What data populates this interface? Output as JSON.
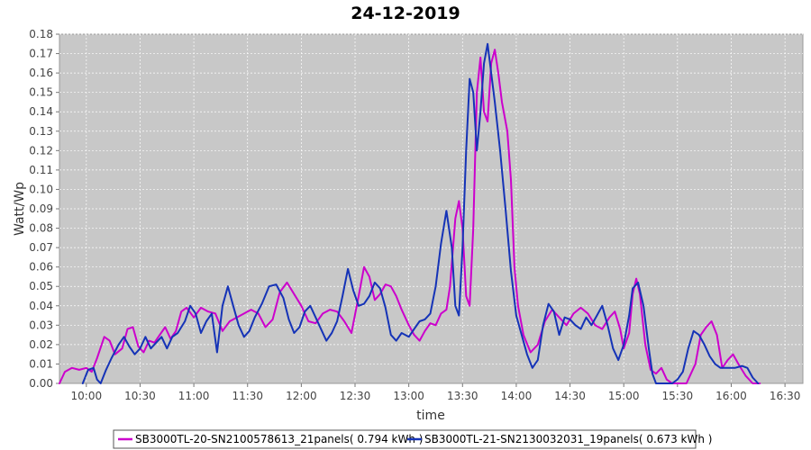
{
  "chart_data": {
    "type": "line",
    "title": "24-12-2019",
    "xlabel": "time",
    "ylabel": "Watt/Wp",
    "x_axis_kind": "time",
    "xlim": [
      "09:45",
      "16:40"
    ],
    "ylim": [
      0,
      0.18
    ],
    "x_ticks": [
      "10:00",
      "10:30",
      "11:00",
      "11:30",
      "12:00",
      "12:30",
      "13:00",
      "13:30",
      "14:00",
      "14:30",
      "15:00",
      "15:30",
      "16:00",
      "16:30"
    ],
    "y_ticks": [
      "0.00",
      "0.01",
      "0.02",
      "0.03",
      "0.04",
      "0.05",
      "0.06",
      "0.07",
      "0.08",
      "0.09",
      "0.10",
      "0.11",
      "0.12",
      "0.13",
      "0.14",
      "0.15",
      "0.16",
      "0.17",
      "0.18"
    ],
    "grid": true,
    "legend_position": "bottom",
    "background_color": "#c8c8c8",
    "series": [
      {
        "name": "SB3000TL-20-SN2100578613_21panels( 0.794 kWh )",
        "color": "#cc00cc",
        "points": [
          [
            "09:45",
            0.0
          ],
          [
            "09:48",
            0.006
          ],
          [
            "09:52",
            0.008
          ],
          [
            "09:56",
            0.007
          ],
          [
            "10:00",
            0.008
          ],
          [
            "10:03",
            0.006
          ],
          [
            "10:06",
            0.013
          ],
          [
            "10:10",
            0.024
          ],
          [
            "10:13",
            0.022
          ],
          [
            "10:16",
            0.015
          ],
          [
            "10:20",
            0.018
          ],
          [
            "10:23",
            0.028
          ],
          [
            "10:26",
            0.029
          ],
          [
            "10:29",
            0.019
          ],
          [
            "10:32",
            0.016
          ],
          [
            "10:35",
            0.022
          ],
          [
            "10:38",
            0.021
          ],
          [
            "10:41",
            0.025
          ],
          [
            "10:44",
            0.029
          ],
          [
            "10:47",
            0.023
          ],
          [
            "10:50",
            0.027
          ],
          [
            "10:53",
            0.037
          ],
          [
            "10:56",
            0.039
          ],
          [
            "11:00",
            0.034
          ],
          [
            "11:04",
            0.039
          ],
          [
            "11:08",
            0.037
          ],
          [
            "11:12",
            0.036
          ],
          [
            "11:16",
            0.027
          ],
          [
            "11:20",
            0.032
          ],
          [
            "11:24",
            0.034
          ],
          [
            "11:28",
            0.036
          ],
          [
            "11:32",
            0.038
          ],
          [
            "11:36",
            0.036
          ],
          [
            "11:40",
            0.029
          ],
          [
            "11:44",
            0.033
          ],
          [
            "11:48",
            0.047
          ],
          [
            "11:52",
            0.052
          ],
          [
            "11:56",
            0.046
          ],
          [
            "12:00",
            0.04
          ],
          [
            "12:04",
            0.032
          ],
          [
            "12:08",
            0.031
          ],
          [
            "12:12",
            0.036
          ],
          [
            "12:16",
            0.038
          ],
          [
            "12:20",
            0.037
          ],
          [
            "12:24",
            0.032
          ],
          [
            "12:28",
            0.026
          ],
          [
            "12:32",
            0.045
          ],
          [
            "12:35",
            0.06
          ],
          [
            "12:38",
            0.055
          ],
          [
            "12:41",
            0.043
          ],
          [
            "12:44",
            0.046
          ],
          [
            "12:47",
            0.051
          ],
          [
            "12:50",
            0.05
          ],
          [
            "12:53",
            0.045
          ],
          [
            "12:56",
            0.038
          ],
          [
            "13:00",
            0.03
          ],
          [
            "13:03",
            0.025
          ],
          [
            "13:06",
            0.022
          ],
          [
            "13:09",
            0.027
          ],
          [
            "13:12",
            0.031
          ],
          [
            "13:15",
            0.03
          ],
          [
            "13:18",
            0.036
          ],
          [
            "13:21",
            0.038
          ],
          [
            "13:23",
            0.05
          ],
          [
            "13:26",
            0.085
          ],
          [
            "13:28",
            0.094
          ],
          [
            "13:30",
            0.08
          ],
          [
            "13:32",
            0.045
          ],
          [
            "13:34",
            0.04
          ],
          [
            "13:36",
            0.08
          ],
          [
            "13:38",
            0.15
          ],
          [
            "13:40",
            0.168
          ],
          [
            "13:42",
            0.14
          ],
          [
            "13:44",
            0.135
          ],
          [
            "13:46",
            0.165
          ],
          [
            "13:48",
            0.172
          ],
          [
            "13:50",
            0.16
          ],
          [
            "13:52",
            0.145
          ],
          [
            "13:55",
            0.13
          ],
          [
            "13:57",
            0.105
          ],
          [
            "13:59",
            0.06
          ],
          [
            "14:01",
            0.04
          ],
          [
            "14:04",
            0.025
          ],
          [
            "14:08",
            0.016
          ],
          [
            "14:12",
            0.02
          ],
          [
            "14:16",
            0.032
          ],
          [
            "14:20",
            0.038
          ],
          [
            "14:24",
            0.034
          ],
          [
            "14:28",
            0.03
          ],
          [
            "14:32",
            0.036
          ],
          [
            "14:36",
            0.039
          ],
          [
            "14:40",
            0.036
          ],
          [
            "14:44",
            0.03
          ],
          [
            "14:48",
            0.028
          ],
          [
            "14:52",
            0.034
          ],
          [
            "14:55",
            0.037
          ],
          [
            "14:58",
            0.028
          ],
          [
            "15:00",
            0.018
          ],
          [
            "15:03",
            0.026
          ],
          [
            "15:05",
            0.046
          ],
          [
            "15:07",
            0.054
          ],
          [
            "15:09",
            0.046
          ],
          [
            "15:12",
            0.02
          ],
          [
            "15:15",
            0.007
          ],
          [
            "15:18",
            0.005
          ],
          [
            "15:21",
            0.008
          ],
          [
            "15:24",
            0.002
          ],
          [
            "15:27",
            0.0
          ],
          [
            "15:35",
            0.0
          ],
          [
            "15:40",
            0.01
          ],
          [
            "15:43",
            0.025
          ],
          [
            "15:46",
            0.029
          ],
          [
            "15:49",
            0.032
          ],
          [
            "15:52",
            0.025
          ],
          [
            "15:55",
            0.008
          ],
          [
            "15:58",
            0.012
          ],
          [
            "16:01",
            0.015
          ],
          [
            "16:04",
            0.01
          ],
          [
            "16:08",
            0.004
          ],
          [
            "16:12",
            0.0
          ],
          [
            "16:16",
            0.0
          ]
        ]
      },
      {
        "name": "SB3000TL-21-SN2130032031_19panels( 0.673 kWh )",
        "color": "#1533b7",
        "points": [
          [
            "09:58",
            0.0
          ],
          [
            "10:01",
            0.007
          ],
          [
            "10:04",
            0.008
          ],
          [
            "10:06",
            0.002
          ],
          [
            "10:08",
            0.0
          ],
          [
            "10:11",
            0.007
          ],
          [
            "10:14",
            0.013
          ],
          [
            "10:18",
            0.02
          ],
          [
            "10:21",
            0.024
          ],
          [
            "10:24",
            0.019
          ],
          [
            "10:27",
            0.015
          ],
          [
            "10:30",
            0.018
          ],
          [
            "10:33",
            0.024
          ],
          [
            "10:36",
            0.018
          ],
          [
            "10:39",
            0.021
          ],
          [
            "10:42",
            0.024
          ],
          [
            "10:45",
            0.018
          ],
          [
            "10:48",
            0.024
          ],
          [
            "10:51",
            0.026
          ],
          [
            "10:55",
            0.032
          ],
          [
            "10:58",
            0.04
          ],
          [
            "11:01",
            0.036
          ],
          [
            "11:04",
            0.026
          ],
          [
            "11:07",
            0.032
          ],
          [
            "11:10",
            0.036
          ],
          [
            "11:13",
            0.016
          ],
          [
            "11:16",
            0.04
          ],
          [
            "11:19",
            0.05
          ],
          [
            "11:22",
            0.04
          ],
          [
            "11:25",
            0.03
          ],
          [
            "11:28",
            0.024
          ],
          [
            "11:31",
            0.027
          ],
          [
            "11:34",
            0.034
          ],
          [
            "11:38",
            0.041
          ],
          [
            "11:42",
            0.05
          ],
          [
            "11:46",
            0.051
          ],
          [
            "11:50",
            0.044
          ],
          [
            "11:53",
            0.033
          ],
          [
            "11:56",
            0.026
          ],
          [
            "11:59",
            0.029
          ],
          [
            "12:02",
            0.037
          ],
          [
            "12:05",
            0.04
          ],
          [
            "12:08",
            0.034
          ],
          [
            "12:11",
            0.028
          ],
          [
            "12:14",
            0.022
          ],
          [
            "12:17",
            0.026
          ],
          [
            "12:20",
            0.032
          ],
          [
            "12:23",
            0.045
          ],
          [
            "12:26",
            0.059
          ],
          [
            "12:29",
            0.048
          ],
          [
            "12:32",
            0.04
          ],
          [
            "12:35",
            0.041
          ],
          [
            "12:38",
            0.045
          ],
          [
            "12:41",
            0.052
          ],
          [
            "12:44",
            0.049
          ],
          [
            "12:47",
            0.039
          ],
          [
            "12:50",
            0.025
          ],
          [
            "12:53",
            0.022
          ],
          [
            "12:56",
            0.026
          ],
          [
            "13:00",
            0.024
          ],
          [
            "13:03",
            0.028
          ],
          [
            "13:06",
            0.032
          ],
          [
            "13:09",
            0.033
          ],
          [
            "13:12",
            0.036
          ],
          [
            "13:15",
            0.05
          ],
          [
            "13:18",
            0.072
          ],
          [
            "13:21",
            0.089
          ],
          [
            "13:24",
            0.07
          ],
          [
            "13:26",
            0.04
          ],
          [
            "13:28",
            0.035
          ],
          [
            "13:30",
            0.07
          ],
          [
            "13:32",
            0.12
          ],
          [
            "13:34",
            0.157
          ],
          [
            "13:36",
            0.15
          ],
          [
            "13:38",
            0.12
          ],
          [
            "13:40",
            0.14
          ],
          [
            "13:42",
            0.165
          ],
          [
            "13:44",
            0.175
          ],
          [
            "13:46",
            0.16
          ],
          [
            "13:48",
            0.145
          ],
          [
            "13:51",
            0.12
          ],
          [
            "13:54",
            0.09
          ],
          [
            "13:57",
            0.058
          ],
          [
            "14:00",
            0.035
          ],
          [
            "14:03",
            0.025
          ],
          [
            "14:06",
            0.015
          ],
          [
            "14:09",
            0.008
          ],
          [
            "14:12",
            0.012
          ],
          [
            "14:15",
            0.03
          ],
          [
            "14:18",
            0.041
          ],
          [
            "14:21",
            0.037
          ],
          [
            "14:24",
            0.025
          ],
          [
            "14:27",
            0.034
          ],
          [
            "14:30",
            0.033
          ],
          [
            "14:33",
            0.03
          ],
          [
            "14:36",
            0.028
          ],
          [
            "14:39",
            0.034
          ],
          [
            "14:42",
            0.03
          ],
          [
            "14:45",
            0.035
          ],
          [
            "14:48",
            0.04
          ],
          [
            "14:51",
            0.03
          ],
          [
            "14:54",
            0.018
          ],
          [
            "14:57",
            0.012
          ],
          [
            "15:00",
            0.02
          ],
          [
            "15:03",
            0.035
          ],
          [
            "15:05",
            0.049
          ],
          [
            "15:08",
            0.052
          ],
          [
            "15:11",
            0.04
          ],
          [
            "15:14",
            0.018
          ],
          [
            "15:16",
            0.005
          ],
          [
            "15:18",
            0.0
          ],
          [
            "15:21",
            0.0
          ],
          [
            "15:24",
            0.0
          ],
          [
            "15:27",
            0.0
          ],
          [
            "15:30",
            0.002
          ],
          [
            "15:33",
            0.006
          ],
          [
            "15:36",
            0.018
          ],
          [
            "15:39",
            0.027
          ],
          [
            "15:42",
            0.025
          ],
          [
            "15:45",
            0.02
          ],
          [
            "15:48",
            0.014
          ],
          [
            "15:51",
            0.01
          ],
          [
            "15:54",
            0.008
          ],
          [
            "15:58",
            0.008
          ],
          [
            "16:02",
            0.008
          ],
          [
            "16:06",
            0.009
          ],
          [
            "16:09",
            0.008
          ],
          [
            "16:12",
            0.003
          ],
          [
            "16:15",
            0.0
          ]
        ]
      }
    ]
  }
}
